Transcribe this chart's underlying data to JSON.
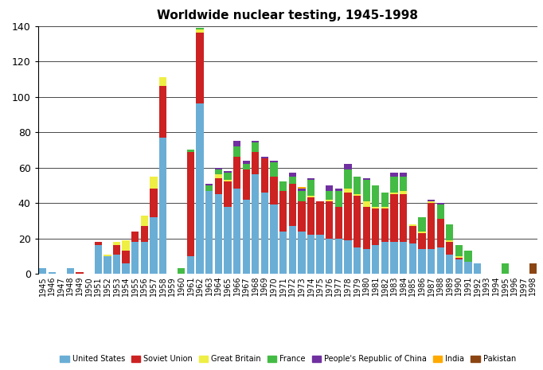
{
  "title": "Worldwide nuclear testing, 1945-1998",
  "years": [
    1945,
    1946,
    1947,
    1948,
    1949,
    1950,
    1951,
    1952,
    1953,
    1954,
    1955,
    1956,
    1957,
    1958,
    1959,
    1960,
    1961,
    1962,
    1963,
    1964,
    1965,
    1966,
    1967,
    1968,
    1969,
    1970,
    1971,
    1972,
    1973,
    1974,
    1975,
    1976,
    1977,
    1978,
    1979,
    1980,
    1981,
    1982,
    1983,
    1984,
    1985,
    1986,
    1987,
    1988,
    1989,
    1990,
    1991,
    1992,
    1993,
    1994,
    1995,
    1996,
    1997,
    1998
  ],
  "US": [
    3,
    1,
    0,
    3,
    0,
    0,
    16,
    10,
    11,
    6,
    18,
    18,
    32,
    77,
    0,
    0,
    10,
    96,
    47,
    45,
    38,
    48,
    42,
    56,
    46,
    39,
    24,
    27,
    24,
    22,
    22,
    20,
    20,
    19,
    15,
    14,
    16,
    18,
    18,
    18,
    17,
    14,
    14,
    15,
    11,
    8,
    7,
    6,
    0,
    0,
    0,
    0,
    0,
    0
  ],
  "USSR": [
    0,
    0,
    0,
    0,
    1,
    0,
    2,
    0,
    5,
    7,
    6,
    9,
    16,
    29,
    0,
    0,
    59,
    40,
    0,
    9,
    14,
    18,
    17,
    13,
    19,
    16,
    23,
    24,
    17,
    21,
    19,
    21,
    18,
    27,
    29,
    24,
    21,
    19,
    27,
    27,
    10,
    9,
    26,
    16,
    7,
    1,
    0,
    0,
    0,
    0,
    0,
    0,
    0,
    0
  ],
  "UK": [
    0,
    0,
    0,
    0,
    0,
    0,
    0,
    1,
    2,
    6,
    0,
    6,
    7,
    5,
    0,
    0,
    0,
    2,
    0,
    2,
    1,
    0,
    0,
    0,
    0,
    0,
    0,
    0,
    0,
    1,
    0,
    1,
    0,
    2,
    1,
    3,
    1,
    1,
    1,
    2,
    1,
    1,
    1,
    0,
    1,
    1,
    0,
    0,
    0,
    0,
    0,
    0,
    0,
    0
  ],
  "France": [
    0,
    0,
    0,
    0,
    0,
    0,
    0,
    0,
    0,
    0,
    0,
    0,
    0,
    0,
    0,
    3,
    1,
    1,
    3,
    3,
    4,
    6,
    3,
    5,
    0,
    8,
    5,
    4,
    6,
    9,
    0,
    5,
    9,
    11,
    10,
    12,
    12,
    8,
    9,
    8,
    0,
    8,
    0,
    8,
    9,
    6,
    6,
    0,
    0,
    0,
    6,
    0,
    0,
    0
  ],
  "China": [
    0,
    0,
    0,
    0,
    0,
    0,
    0,
    0,
    0,
    0,
    0,
    0,
    0,
    0,
    0,
    0,
    0,
    0,
    1,
    1,
    1,
    3,
    2,
    1,
    1,
    1,
    0,
    2,
    1,
    1,
    0,
    3,
    1,
    3,
    0,
    1,
    0,
    0,
    2,
    2,
    0,
    0,
    1,
    1,
    0,
    0,
    0,
    0,
    0,
    0,
    0,
    0,
    0,
    0
  ],
  "India": [
    0,
    0,
    0,
    0,
    0,
    0,
    0,
    0,
    0,
    0,
    0,
    0,
    0,
    0,
    0,
    0,
    0,
    0,
    0,
    0,
    0,
    0,
    0,
    0,
    0,
    0,
    0,
    0,
    1,
    0,
    0,
    0,
    0,
    0,
    0,
    0,
    0,
    0,
    0,
    0,
    0,
    0,
    0,
    0,
    0,
    0,
    0,
    0,
    0,
    0,
    0,
    0,
    0,
    0
  ],
  "Pakistan": [
    0,
    0,
    0,
    0,
    0,
    0,
    0,
    0,
    0,
    0,
    0,
    0,
    0,
    0,
    0,
    0,
    0,
    0,
    0,
    0,
    0,
    0,
    0,
    0,
    0,
    0,
    0,
    0,
    0,
    0,
    0,
    0,
    0,
    0,
    0,
    0,
    0,
    0,
    0,
    0,
    0,
    0,
    0,
    0,
    0,
    0,
    0,
    0,
    0,
    0,
    0,
    0,
    0,
    6
  ],
  "colors": {
    "US": "#6aaed6",
    "USSR": "#cc2222",
    "UK": "#eeee44",
    "France": "#44bb44",
    "China": "#7030a0",
    "India": "#ffaa00",
    "Pakistan": "#8b4513"
  },
  "ylim": [
    0,
    140
  ],
  "yticks": [
    0,
    20,
    40,
    60,
    80,
    100,
    120,
    140
  ],
  "figwidth": 6.82,
  "figheight": 4.65,
  "dpi": 100
}
